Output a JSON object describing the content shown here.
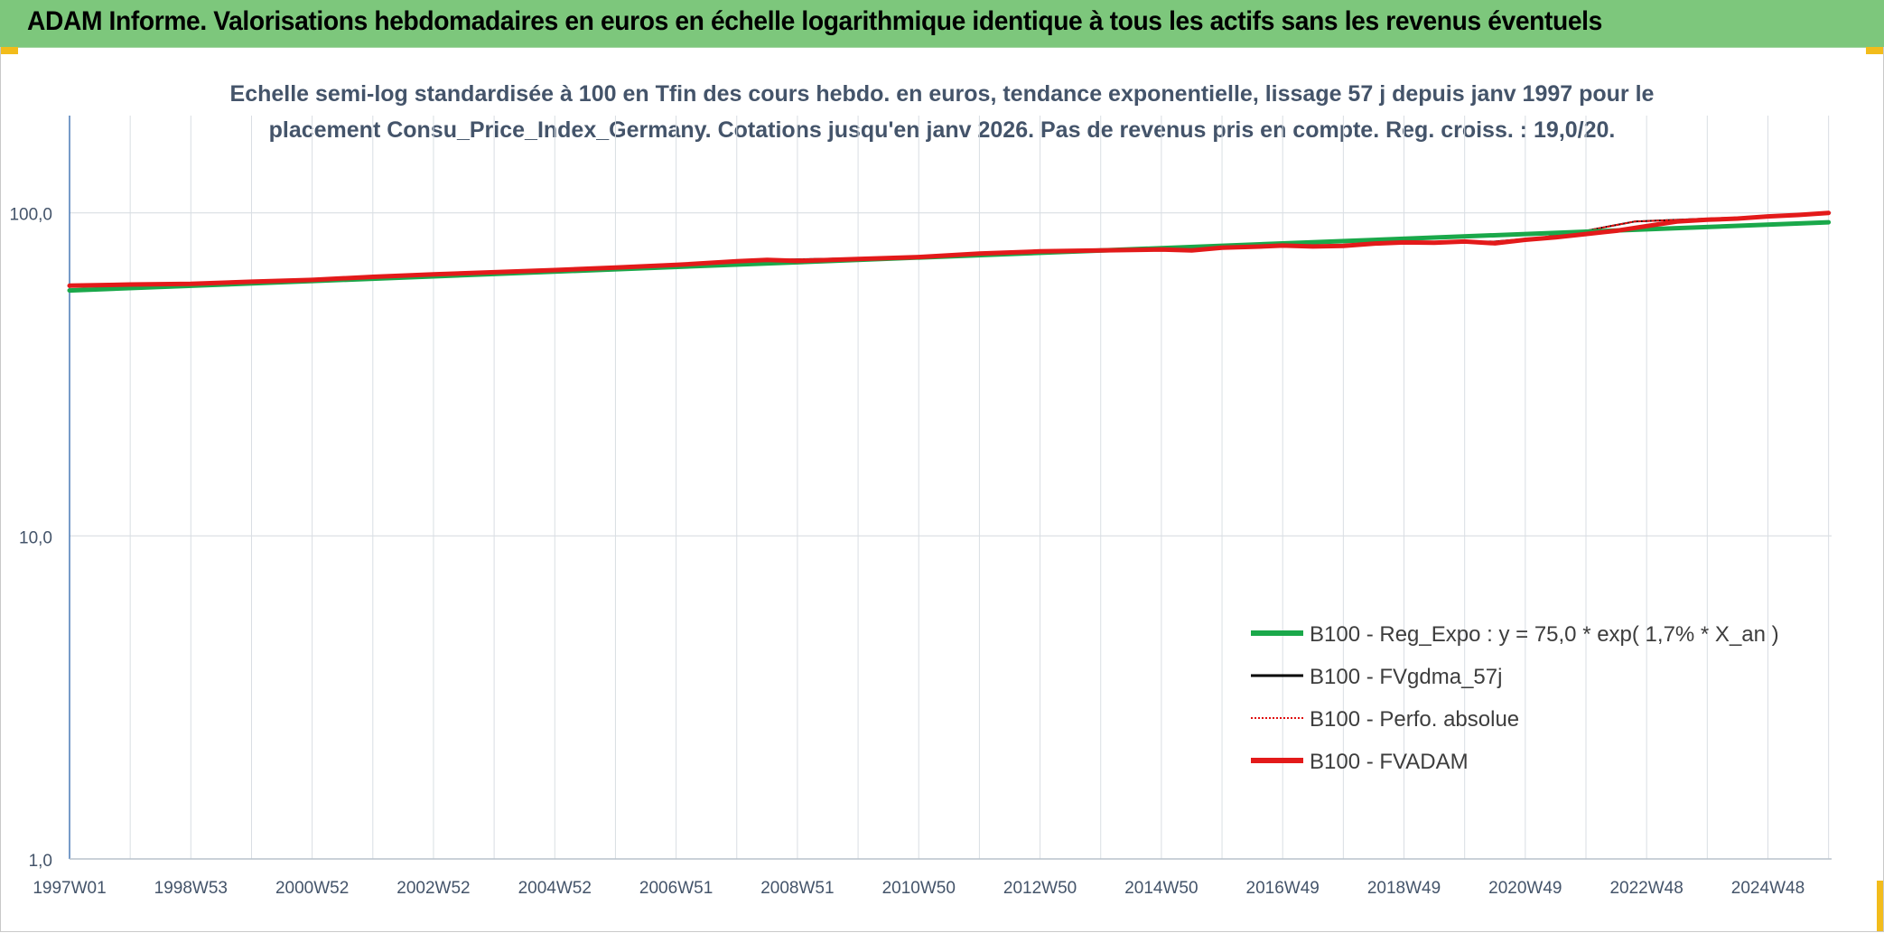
{
  "header": {
    "title": "ADAM Informe. Valorisations hebdomadaires en euros en échelle logarithmique identique à tous les actifs sans les revenus éventuels"
  },
  "colors": {
    "banner": "#7dc77c",
    "corner_marks": "#f2bc1b",
    "reg_expo": "#1aa84a",
    "fvgdma": "#000000",
    "perfo": "#e01010",
    "fvadam": "#e31a1a",
    "axis": "#4a7ab5",
    "grid": "#d9dee3",
    "text": "#44546a"
  },
  "chart_data": {
    "type": "line",
    "title_lines": [
      "Echelle semi-log standardisée à 100 en Tfin des cours hebdo. en euros, tendance exponentielle, lissage 57 j depuis janv 1997 pour le",
      "placement Consu_Price_Index_Germany. Cotations jusqu'en janv 2026. Pas de revenus pris en compte. Reg. croiss. : 19,0/20."
    ],
    "y_scale": "log",
    "ylim": [
      1,
      200
    ],
    "xlim": [
      1997.0,
      2026.05
    ],
    "y_ticks": [
      {
        "value": 1,
        "label": "1,0"
      },
      {
        "value": 10,
        "label": "10,0"
      },
      {
        "value": 100,
        "label": "100,0"
      }
    ],
    "x_ticks": [
      {
        "value": 1997.0,
        "label": "1997W01"
      },
      {
        "value": 1999.0,
        "label": "1998W53"
      },
      {
        "value": 2001.0,
        "label": "2000W52"
      },
      {
        "value": 2003.0,
        "label": "2002W52"
      },
      {
        "value": 2005.0,
        "label": "2004W52"
      },
      {
        "value": 2007.0,
        "label": "2006W51"
      },
      {
        "value": 2009.0,
        "label": "2008W51"
      },
      {
        "value": 2011.0,
        "label": "2010W50"
      },
      {
        "value": 2013.0,
        "label": "2012W50"
      },
      {
        "value": 2015.0,
        "label": "2014W50"
      },
      {
        "value": 2017.0,
        "label": "2016W49"
      },
      {
        "value": 2019.0,
        "label": "2018W49"
      },
      {
        "value": 2021.0,
        "label": "2020W49"
      },
      {
        "value": 2023.0,
        "label": "2022W48"
      },
      {
        "value": 2025.0,
        "label": "2024W48"
      }
    ],
    "series": [
      {
        "name": "B100 - Reg_Expo : y = 75,0 * exp( 1,7% *  X_an )",
        "color": "#1aa84a",
        "style": "solid-thick",
        "x": [
          1997.0,
          2026.0
        ],
        "y": [
          57.5,
          93.5
        ]
      },
      {
        "name": "B100 - FVgdma_57j",
        "color": "#000000",
        "style": "solid-thin",
        "x": [
          1997.0,
          1999.0,
          2001.0,
          2003.0,
          2005.0,
          2007.0,
          2008.5,
          2011.0,
          2013.0,
          2015.0,
          2016.5,
          2018.0,
          2019.0,
          2020.5,
          2021.3,
          2022.0,
          2022.8,
          2024.0,
          2025.0,
          2026.0
        ],
        "y": [
          59.5,
          60.2,
          62.0,
          64.5,
          66.5,
          69.0,
          71.5,
          73.0,
          76.0,
          77.0,
          78.5,
          79.0,
          81.0,
          81.5,
          84.0,
          88.0,
          94.0,
          96.0,
          97.5,
          100.0
        ]
      },
      {
        "name": "B100 - Perfo. absolue",
        "color": "#e01010",
        "style": "dotted",
        "x": [
          1997.0,
          1999.0,
          2001.0,
          2003.0,
          2005.0,
          2007.0,
          2008.5,
          2011.0,
          2013.0,
          2015.0,
          2016.5,
          2018.0,
          2019.0,
          2020.5,
          2021.3,
          2022.0,
          2022.8,
          2024.0,
          2025.0,
          2026.0
        ],
        "y": [
          59.5,
          60.2,
          62.0,
          64.5,
          66.5,
          69.0,
          71.5,
          73.0,
          76.0,
          77.0,
          78.5,
          79.0,
          81.0,
          81.5,
          84.0,
          88.0,
          94.0,
          96.0,
          97.5,
          100.0
        ]
      },
      {
        "name": "B100 - FVADAM",
        "color": "#e31a1a",
        "style": "solid-thick",
        "x": [
          1997.0,
          1998.0,
          1999.0,
          2000.0,
          2001.0,
          2002.0,
          2003.0,
          2004.0,
          2005.0,
          2006.0,
          2007.0,
          2008.0,
          2008.5,
          2009.0,
          2010.0,
          2011.0,
          2012.0,
          2013.0,
          2014.0,
          2015.0,
          2015.5,
          2016.0,
          2016.5,
          2017.0,
          2017.5,
          2018.0,
          2018.5,
          2019.0,
          2019.5,
          2020.0,
          2020.5,
          2021.0,
          2021.5,
          2022.0,
          2022.5,
          2023.0,
          2023.5,
          2024.0,
          2024.5,
          2025.0,
          2025.5,
          2026.0
        ],
        "y": [
          59.5,
          60.0,
          60.3,
          61.2,
          62.0,
          63.4,
          64.5,
          65.5,
          66.5,
          67.7,
          69.0,
          70.8,
          71.5,
          71.0,
          72.0,
          73.0,
          74.8,
          76.0,
          76.5,
          77.0,
          76.5,
          78.0,
          78.5,
          79.2,
          78.7,
          79.0,
          80.3,
          81.0,
          80.8,
          81.5,
          80.5,
          82.5,
          84.0,
          86.0,
          88.0,
          91.0,
          94.0,
          95.2,
          96.0,
          97.5,
          98.5,
          100.0
        ]
      }
    ],
    "legend": {
      "placement": "lower-right",
      "entries": [
        "B100 - Reg_Expo : y = 75,0 * exp( 1,7% *  X_an )",
        "B100 - FVgdma_57j",
        "B100 - Perfo. absolue",
        "B100 - FVADAM"
      ]
    }
  }
}
